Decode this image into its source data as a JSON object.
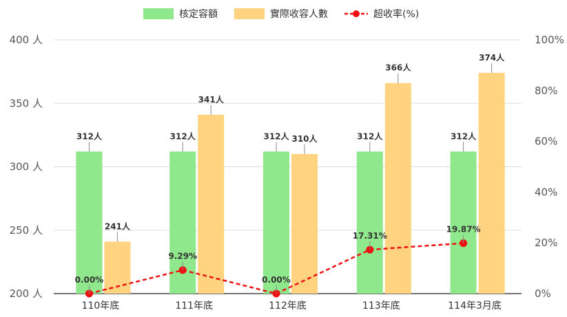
{
  "chart_data": {
    "type": "bar",
    "categories": [
      "110年底",
      "111年底",
      "112年底",
      "113年底",
      "114年3月底"
    ],
    "series": [
      {
        "name": "核定容額",
        "kind": "bar",
        "axis": "left",
        "color": "#90e88c",
        "values": [
          312,
          312,
          312,
          312,
          312
        ],
        "labels": [
          "312人",
          "312人",
          "312人",
          "312人",
          "312人"
        ]
      },
      {
        "name": "實際收容人數",
        "kind": "bar",
        "axis": "left",
        "color": "#ffd37f",
        "values": [
          241,
          341,
          310,
          366,
          374
        ],
        "labels": [
          "241人",
          "341人",
          "310人",
          "366人",
          "374人"
        ]
      },
      {
        "name": "超收率(%)",
        "kind": "line",
        "axis": "right",
        "color": "#ee1111",
        "values": [
          0.0,
          9.29,
          0.0,
          17.31,
          19.87
        ],
        "labels": [
          "0.00%",
          "9.29%",
          "0.00%",
          "17.31%",
          "19.87%"
        ]
      }
    ],
    "y_left": {
      "ylim": [
        200,
        400
      ],
      "ticks": [
        200,
        250,
        300,
        350,
        400
      ],
      "tick_labels": [
        "200 人",
        "250 人",
        "300 人",
        "350 人",
        "400 人"
      ]
    },
    "y_right": {
      "ylim": [
        0,
        100
      ],
      "ticks": [
        0,
        20,
        40,
        60,
        80,
        100
      ],
      "tick_labels": [
        "0%",
        "20%",
        "40%",
        "60%",
        "80%",
        "100%"
      ]
    },
    "grid": true,
    "legend_position": "top-center"
  }
}
